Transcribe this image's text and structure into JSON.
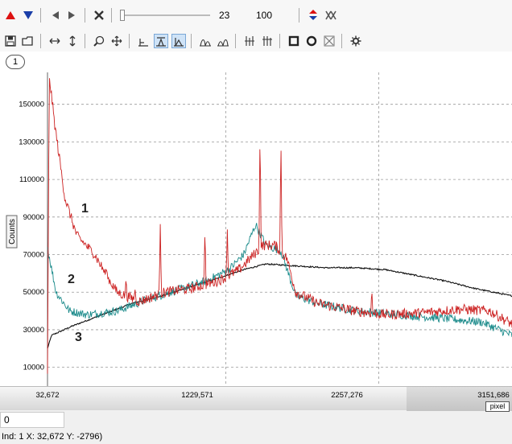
{
  "toolbar": {
    "frame_value": "23",
    "zoom_value": "100",
    "slider_position": 0.0
  },
  "tab": {
    "label": "1"
  },
  "chart_data": {
    "type": "line",
    "ylabel": "Counts",
    "xlim": [
      32672,
      3151686
    ],
    "ylim": [
      0,
      167000
    ],
    "yticks": [
      10000,
      30000,
      50000,
      70000,
      90000,
      110000,
      130000,
      150000
    ],
    "x_tick_labels": [
      "32,672",
      "1229,571",
      "2257,276",
      "3151,686"
    ],
    "x_tick_values": [
      32672,
      1229571,
      2257276,
      3151686
    ],
    "x_unit": "pixel",
    "curve_labels": [
      "1",
      "2",
      "3"
    ],
    "series": [
      {
        "color": "#cc2222",
        "points": [
          [
            32672,
            5000
          ],
          [
            45000,
            165000
          ],
          [
            80000,
            140000
          ],
          [
            150000,
            100000
          ],
          [
            230000,
            80000
          ],
          [
            350000,
            70000
          ],
          [
            420000,
            60000
          ],
          [
            500000,
            50000
          ],
          [
            650000,
            45000
          ],
          [
            820000,
            50000
          ],
          [
            1000000,
            52000
          ],
          [
            1180000,
            56000
          ],
          [
            1320000,
            62000
          ],
          [
            1480000,
            75000
          ],
          [
            1560000,
            75000
          ],
          [
            1640000,
            68000
          ],
          [
            1700000,
            50000
          ],
          [
            1850000,
            44000
          ],
          [
            2100000,
            40000
          ],
          [
            2300000,
            38000
          ],
          [
            2550000,
            39000
          ],
          [
            2800000,
            41000
          ],
          [
            3000000,
            40000
          ],
          [
            3151686,
            33000
          ]
        ],
        "spikes": [
          [
            230000,
            78000
          ],
          [
            280000,
            75000
          ],
          [
            330000,
            64000
          ],
          [
            430000,
            62000
          ],
          [
            560000,
            58000
          ],
          [
            620000,
            52000
          ],
          [
            790000,
            87000
          ],
          [
            920000,
            52000
          ],
          [
            1090000,
            85000
          ],
          [
            1240000,
            84000
          ],
          [
            1460000,
            140000
          ],
          [
            1600000,
            135000
          ],
          [
            2210000,
            52000
          ]
        ]
      },
      {
        "color": "#1a8a8a",
        "points": [
          [
            32672,
            74000
          ],
          [
            90000,
            50000
          ],
          [
            180000,
            40000
          ],
          [
            300000,
            38000
          ],
          [
            500000,
            40000
          ],
          [
            700000,
            46000
          ],
          [
            900000,
            51000
          ],
          [
            1100000,
            56000
          ],
          [
            1250000,
            62000
          ],
          [
            1350000,
            70000
          ],
          [
            1430000,
            86000
          ],
          [
            1500000,
            75000
          ],
          [
            1600000,
            72000
          ],
          [
            1700000,
            48000
          ],
          [
            1850000,
            44000
          ],
          [
            2100000,
            40000
          ],
          [
            2400000,
            38000
          ],
          [
            2700000,
            36000
          ],
          [
            2950000,
            34000
          ],
          [
            3151686,
            27000
          ]
        ]
      },
      {
        "color": "#111111",
        "points": [
          [
            32672,
            20000
          ],
          [
            60000,
            27000
          ],
          [
            200000,
            32000
          ],
          [
            400000,
            38000
          ],
          [
            600000,
            44000
          ],
          [
            800000,
            48000
          ],
          [
            1000000,
            53000
          ],
          [
            1200000,
            58000
          ],
          [
            1350000,
            62000
          ],
          [
            1500000,
            65000
          ],
          [
            1700000,
            64000
          ],
          [
            1900000,
            63000
          ],
          [
            2100000,
            63000
          ],
          [
            2300000,
            62000
          ],
          [
            2500000,
            59000
          ],
          [
            2700000,
            56000
          ],
          [
            2900000,
            52000
          ],
          [
            3151686,
            48000
          ]
        ]
      }
    ]
  },
  "value_field": {
    "value": "0"
  },
  "status_bar": {
    "text": "Ind: 1 X: 32,672 Y: -2796)"
  }
}
